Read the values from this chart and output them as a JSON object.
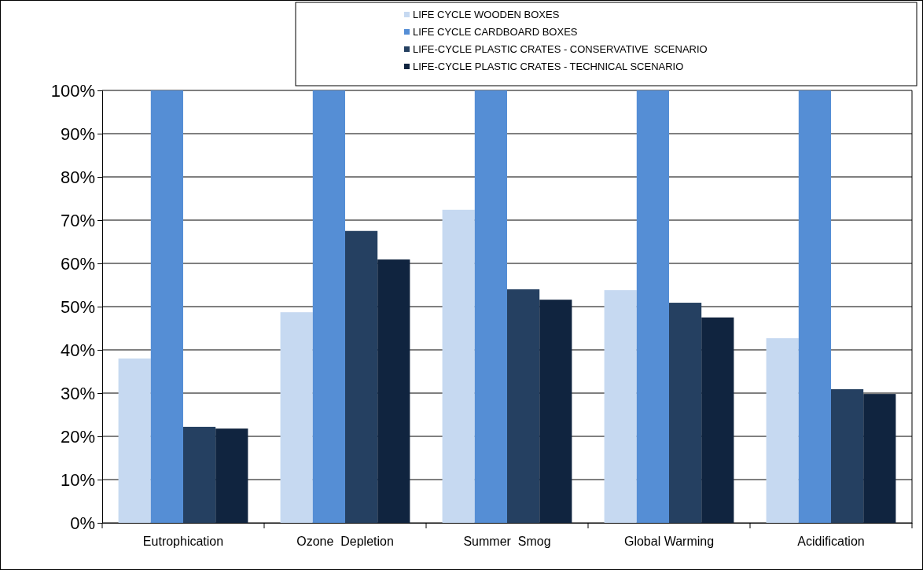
{
  "chart_data": {
    "type": "bar",
    "categories": [
      "Eutrophication",
      "Ozone  Depletion",
      "Summer  Smog",
      "Global Warming",
      "Acidification"
    ],
    "series": [
      {
        "name": "LIFE CYCLE WOODEN BOXES",
        "color": "#c6d9f1",
        "values": [
          38,
          48.7,
          72.4,
          53.8,
          42.7
        ]
      },
      {
        "name": "LIFE CYCLE CARDBOARD BOXES",
        "color": "#558ed5",
        "values": [
          100,
          100,
          100,
          100,
          100
        ]
      },
      {
        "name": "LIFE-CYCLE PLASTIC CRATES - CONSERVATIVE  SCENARIO",
        "color": "#254061",
        "values": [
          22.2,
          67.5,
          54,
          50.9,
          30.9
        ]
      },
      {
        "name": "LIFE-CYCLE PLASTIC CRATES - TECHNICAL SCENARIO",
        "color": "#10243f",
        "values": [
          21.8,
          60.9,
          51.6,
          47.5,
          29.8
        ]
      }
    ],
    "ylim": [
      0,
      100
    ],
    "yticks": [
      {
        "value": 0,
        "label": "0%"
      },
      {
        "value": 10,
        "label": "10%"
      },
      {
        "value": 20,
        "label": "20%"
      },
      {
        "value": 30,
        "label": "30%"
      },
      {
        "value": 40,
        "label": "40%"
      },
      {
        "value": 50,
        "label": "50%"
      },
      {
        "value": 60,
        "label": "60%"
      },
      {
        "value": 70,
        "label": "70%"
      },
      {
        "value": 80,
        "label": "80%"
      },
      {
        "value": 90,
        "label": "90%"
      },
      {
        "value": 100,
        "label": "100%"
      }
    ],
    "grid": "y",
    "legend": "top right"
  }
}
